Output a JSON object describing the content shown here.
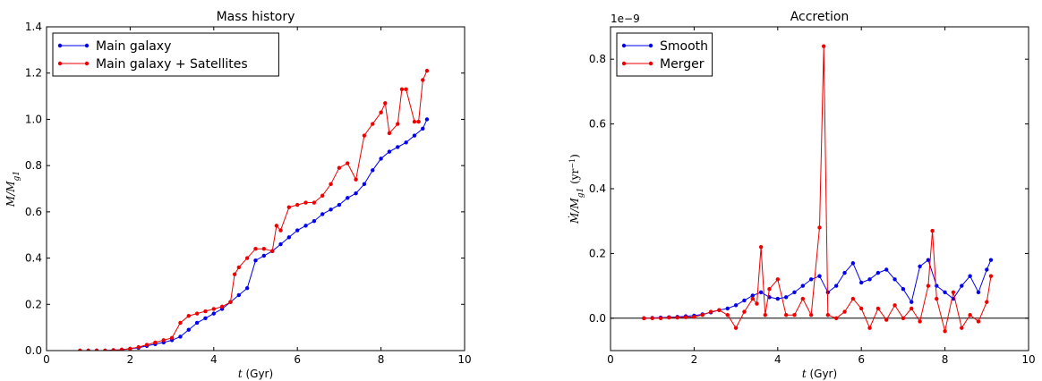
{
  "colors": {
    "blue": "#0000ee",
    "red": "#ee0000"
  },
  "chart_data": [
    {
      "type": "line",
      "title": "Mass history",
      "xlabel": "t (Gyr)",
      "ylabel": "M/M_g1",
      "xlim": [
        0,
        10
      ],
      "ylim": [
        0,
        1.4
      ],
      "xticks": [
        "0",
        "2",
        "4",
        "6",
        "8",
        "10"
      ],
      "yticks": [
        "0.0",
        "0.2",
        "0.4",
        "0.6",
        "0.8",
        "1.0",
        "1.2",
        "1.4"
      ],
      "legend_position": "top-left",
      "series": [
        {
          "name": "Main galaxy",
          "color": "#0000ee",
          "x": [
            0.8,
            1.0,
            1.2,
            1.4,
            1.6,
            1.8,
            2.0,
            2.2,
            2.4,
            2.6,
            2.8,
            3.0,
            3.2,
            3.4,
            3.6,
            3.8,
            4.0,
            4.2,
            4.4,
            4.6,
            4.8,
            5.0,
            5.2,
            5.4,
            5.6,
            5.8,
            6.0,
            6.2,
            6.4,
            6.6,
            6.8,
            7.0,
            7.2,
            7.4,
            7.6,
            7.8,
            8.0,
            8.2,
            8.4,
            8.6,
            8.8,
            9.0,
            9.1
          ],
          "y": [
            0.0,
            0.0,
            0.0,
            0.0,
            0.002,
            0.004,
            0.008,
            0.012,
            0.02,
            0.028,
            0.035,
            0.045,
            0.06,
            0.09,
            0.12,
            0.14,
            0.16,
            0.18,
            0.21,
            0.24,
            0.27,
            0.39,
            0.41,
            0.43,
            0.46,
            0.49,
            0.52,
            0.54,
            0.56,
            0.59,
            0.61,
            0.63,
            0.66,
            0.68,
            0.72,
            0.78,
            0.83,
            0.86,
            0.88,
            0.9,
            0.93,
            0.96,
            1.0
          ]
        },
        {
          "name": "Main galaxy + Satellites",
          "color": "#ee0000",
          "x": [
            0.8,
            1.0,
            1.2,
            1.4,
            1.6,
            1.8,
            2.0,
            2.2,
            2.4,
            2.6,
            2.8,
            3.0,
            3.2,
            3.4,
            3.6,
            3.8,
            4.0,
            4.2,
            4.4,
            4.5,
            4.6,
            4.8,
            5.0,
            5.2,
            5.4,
            5.5,
            5.6,
            5.8,
            6.0,
            6.2,
            6.4,
            6.6,
            6.8,
            7.0,
            7.2,
            7.4,
            7.6,
            7.8,
            8.0,
            8.1,
            8.2,
            8.4,
            8.5,
            8.6,
            8.8,
            8.9,
            9.0,
            9.1
          ],
          "y": [
            0.0,
            0.0,
            0.0,
            0.0,
            0.002,
            0.004,
            0.008,
            0.015,
            0.025,
            0.035,
            0.045,
            0.055,
            0.12,
            0.15,
            0.16,
            0.17,
            0.18,
            0.19,
            0.21,
            0.33,
            0.36,
            0.4,
            0.44,
            0.44,
            0.43,
            0.54,
            0.52,
            0.62,
            0.63,
            0.64,
            0.64,
            0.67,
            0.72,
            0.79,
            0.81,
            0.74,
            0.93,
            0.98,
            1.03,
            1.07,
            0.94,
            0.98,
            1.13,
            1.13,
            0.99,
            0.99,
            1.17,
            1.21
          ]
        }
      ]
    },
    {
      "type": "line",
      "title": "Accretion",
      "xlabel": "t (Gyr)",
      "ylabel": "Ṁ/M_g1 (yr^-1)",
      "scale_label": "1e−9",
      "xlim": [
        0,
        10
      ],
      "ylim": [
        -0.1,
        0.9
      ],
      "xticks": [
        "0",
        "2",
        "4",
        "6",
        "8",
        "10"
      ],
      "yticks": [
        "0.0",
        "0.2",
        "0.4",
        "0.6",
        "0.8"
      ],
      "legend_position": "top-left",
      "zero_line": true,
      "series": [
        {
          "name": "Smooth",
          "color": "#0000ee",
          "x": [
            0.8,
            1.0,
            1.2,
            1.4,
            1.6,
            1.8,
            2.0,
            2.2,
            2.4,
            2.6,
            2.8,
            3.0,
            3.2,
            3.4,
            3.6,
            3.8,
            4.0,
            4.2,
            4.4,
            4.6,
            4.8,
            5.0,
            5.2,
            5.4,
            5.6,
            5.8,
            6.0,
            6.2,
            6.4,
            6.6,
            6.8,
            7.0,
            7.2,
            7.4,
            7.6,
            7.8,
            8.0,
            8.2,
            8.4,
            8.6,
            8.8,
            9.0,
            9.1
          ],
          "y": [
            0.0,
            0.001,
            0.002,
            0.003,
            0.004,
            0.006,
            0.008,
            0.012,
            0.018,
            0.025,
            0.03,
            0.04,
            0.055,
            0.07,
            0.08,
            0.065,
            0.06,
            0.065,
            0.08,
            0.1,
            0.12,
            0.13,
            0.08,
            0.1,
            0.14,
            0.17,
            0.11,
            0.12,
            0.14,
            0.15,
            0.12,
            0.09,
            0.05,
            0.16,
            0.18,
            0.1,
            0.08,
            0.06,
            0.1,
            0.13,
            0.08,
            0.15,
            0.18
          ]
        },
        {
          "name": "Merger",
          "color": "#ee0000",
          "x": [
            0.8,
            1.0,
            1.2,
            1.4,
            1.6,
            1.8,
            2.0,
            2.2,
            2.4,
            2.6,
            2.8,
            3.0,
            3.2,
            3.4,
            3.5,
            3.6,
            3.7,
            3.8,
            4.0,
            4.2,
            4.4,
            4.6,
            4.8,
            5.0,
            5.1,
            5.2,
            5.4,
            5.6,
            5.8,
            6.0,
            6.2,
            6.4,
            6.6,
            6.8,
            7.0,
            7.2,
            7.4,
            7.6,
            7.7,
            7.8,
            8.0,
            8.2,
            8.4,
            8.6,
            8.8,
            9.0,
            9.1
          ],
          "y": [
            0.0,
            0.0,
            0.0,
            0.002,
            0.002,
            0.003,
            0.004,
            0.01,
            0.02,
            0.025,
            0.01,
            -0.03,
            0.02,
            0.06,
            0.045,
            0.22,
            0.01,
            0.09,
            0.12,
            0.01,
            0.01,
            0.06,
            0.01,
            0.28,
            0.84,
            0.01,
            0.0,
            0.02,
            0.06,
            0.03,
            -0.03,
            0.03,
            -0.005,
            0.04,
            0.0,
            0.03,
            -0.01,
            0.1,
            0.27,
            0.06,
            -0.04,
            0.08,
            -0.03,
            0.01,
            -0.01,
            0.05,
            0.13
          ]
        }
      ]
    }
  ]
}
